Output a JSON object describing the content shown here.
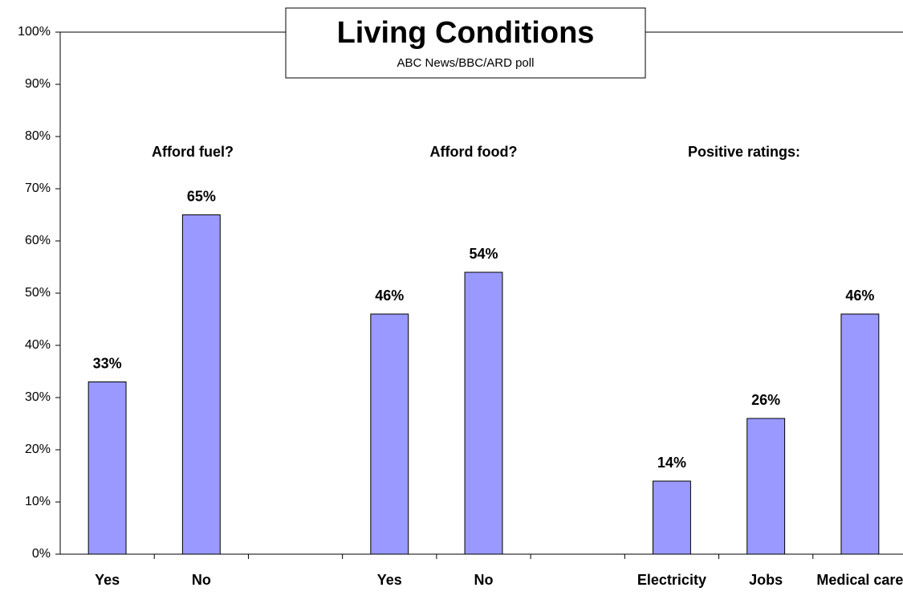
{
  "chart_data": {
    "type": "bar",
    "title": "Living Conditions",
    "subtitle": "ABC News/BBC/ARD poll",
    "categories": [
      "Yes",
      "No",
      null,
      "Yes",
      "No",
      null,
      "Electricity",
      "Jobs",
      "Medical care"
    ],
    "values": [
      33,
      65,
      null,
      46,
      54,
      null,
      14,
      26,
      46
    ],
    "value_labels": [
      "33%",
      "65%",
      null,
      "46%",
      "54%",
      null,
      "14%",
      "26%",
      "46%"
    ],
    "color": "#9999ff",
    "annotations": [
      "Afford fuel?",
      "Afford food?",
      "Positive ratings:"
    ],
    "ylim": [
      0,
      100
    ],
    "yticks": [
      {
        "value": 0,
        "label": "0%"
      },
      {
        "value": 10,
        "label": "10%"
      },
      {
        "value": 20,
        "label": "20%"
      },
      {
        "value": 30,
        "label": "30%"
      },
      {
        "value": 40,
        "label": "40%"
      },
      {
        "value": 50,
        "label": "50%"
      },
      {
        "value": 60,
        "label": "60%"
      },
      {
        "value": 70,
        "label": "70%"
      },
      {
        "value": 80,
        "label": "80%"
      },
      {
        "value": 90,
        "label": "90%"
      },
      {
        "value": 100,
        "label": "100%"
      }
    ],
    "grid": false
  }
}
